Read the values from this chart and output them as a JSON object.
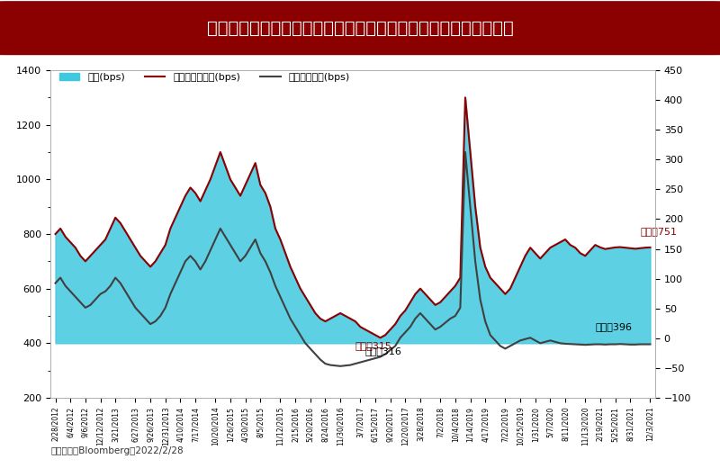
{
  "title": "美高收利差收窄到歷史低點後，新興高收的利差就顯得更有吸引力",
  "title_bg_color": "#8B0000",
  "title_text_color": "#FFFFFF",
  "legend_items": [
    "差異(bps)",
    "新興高收債利差(bps)",
    "美高收債利差(bps)"
  ],
  "area_color": "#40C8E0",
  "em_line_color": "#8B0000",
  "us_line_color": "#404040",
  "ylabel_left": "",
  "ylabel_right": "",
  "ylim_left": [
    200,
    1400
  ],
  "ylim_right": [
    -100,
    450
  ],
  "annotation_em_current": "當前：751",
  "annotation_us_current": "當前：396",
  "annotation_em_min": "最低：315",
  "annotation_us_min": "最低：316",
  "annotation_color_em": "#8B0000",
  "annotation_color_us": "#000000",
  "source_text": "資料來源：Bloomberg，2022/2/28",
  "background_color": "#FFFFFF"
}
